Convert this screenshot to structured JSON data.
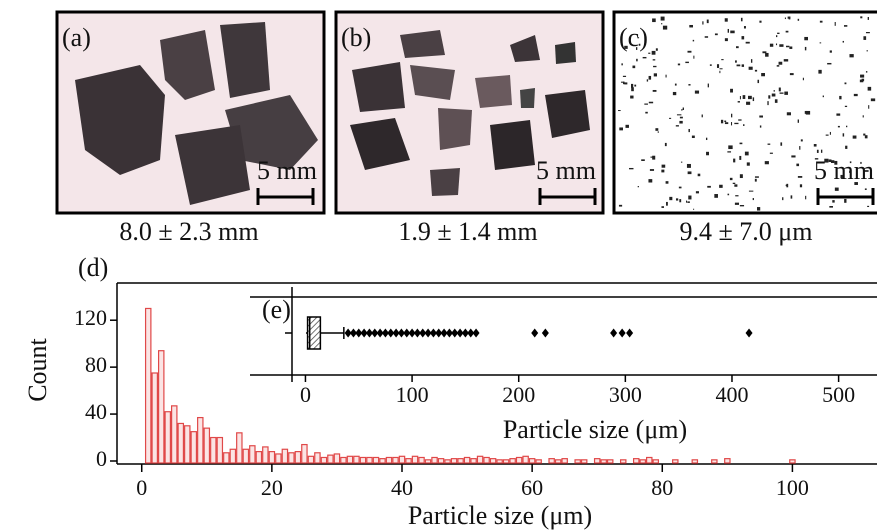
{
  "panels": [
    {
      "label": "(a)",
      "scale": "5 mm",
      "caption": "8.0 ± 2.3 mm"
    },
    {
      "label": "(b)",
      "scale": "5 mm",
      "caption": "1.9 ± 1.4 mm"
    },
    {
      "label": "(c)",
      "scale": "5 mm",
      "caption": "9.4 ± 7.0 μm"
    }
  ],
  "chart_data": [
    {
      "type": "histogram",
      "label": "(d)",
      "ylabel": "Count",
      "xlabel": "Particle size (μm)",
      "color": "#e04848",
      "bins": [
        0.5,
        1.5,
        2.5,
        3.5,
        4.5,
        5.5,
        6.5,
        7.5,
        8.5,
        9.5,
        10.5,
        11.5,
        12.5,
        13.5,
        14.5,
        15.5,
        16.5,
        17.5,
        18.5,
        19.5,
        20.5,
        21.5,
        22.5,
        23.5,
        24.5,
        25.5,
        26.5,
        27.5,
        28.5,
        29.5,
        30.5,
        31.5,
        32.5,
        33.5,
        34.5,
        35.5,
        36.5,
        37.5,
        38.5,
        39.5,
        40.5,
        41.5,
        42.5,
        43.5,
        44.5,
        45.5,
        46.5,
        47.5,
        48.5,
        49.5,
        50.5,
        51.5,
        52.5,
        53.5,
        54.5,
        55.5,
        56.5,
        57.5,
        58.5,
        59.5,
        60.5,
        61.5,
        62.5,
        63.5,
        64.5,
        65.5,
        66.5,
        67.5,
        68.5,
        69.5,
        70.5,
        71.5,
        72.5,
        73.5,
        74.5,
        75.5,
        76.5,
        77.5,
        78.5,
        79.5,
        80.5,
        81.5,
        82.5,
        83.5,
        84.5,
        85.5,
        86.5,
        87.5,
        88.5,
        89.5,
        90.5,
        91.5,
        92.5,
        93.5,
        94.5,
        95.5,
        96.5,
        97.5,
        98.5,
        99.5,
        100.5
      ],
      "values": [
        130,
        75,
        94,
        42,
        47,
        32,
        30,
        25,
        37,
        28,
        20,
        20,
        7,
        10,
        24,
        10,
        13,
        8,
        12,
        8,
        6,
        10,
        7,
        8,
        14,
        4,
        7,
        3,
        5,
        6,
        3,
        4,
        4,
        3,
        3,
        3,
        2,
        3,
        3,
        4,
        2,
        4,
        3,
        1,
        3,
        2,
        1,
        2,
        2,
        3,
        2,
        4,
        3,
        2,
        1,
        1,
        2,
        3,
        4,
        2,
        1,
        0,
        2,
        1,
        2,
        0,
        1,
        1,
        0,
        2,
        1,
        1,
        0,
        1,
        0,
        2,
        1,
        3,
        1,
        0,
        0,
        1,
        0,
        0,
        1,
        0,
        0,
        1,
        0,
        2,
        0,
        0,
        0,
        0,
        0,
        0,
        0,
        0,
        0,
        1
      ],
      "xlim": [
        -3.8,
        113
      ],
      "ylim": [
        0,
        150
      ],
      "xticks": [
        0,
        20,
        40,
        60,
        80,
        100
      ],
      "yticks": [
        0,
        40,
        80,
        120
      ]
    },
    {
      "type": "box",
      "label": "(e)",
      "xlabel": "Particle size (μm)",
      "whisker_low": 0.5,
      "q1": 2,
      "median": 4,
      "q3": 14,
      "whisker_high": 36,
      "outliers": [
        40,
        45,
        50,
        55,
        60,
        65,
        70,
        75,
        80,
        85,
        90,
        95,
        100,
        105,
        110,
        115,
        120,
        125,
        130,
        135,
        140,
        145,
        150,
        155,
        160,
        215,
        225,
        289,
        297,
        304,
        416
      ],
      "xlim": [
        -52,
        536
      ],
      "xticks": [
        0,
        100,
        200,
        300,
        400,
        500
      ]
    }
  ]
}
